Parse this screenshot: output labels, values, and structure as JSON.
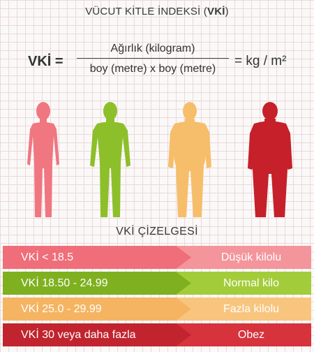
{
  "header": {
    "title_prefix": "VÜCUT KİTLE İNDEKSİ (",
    "title_bold": "VKİ",
    "title_suffix": ")"
  },
  "formula": {
    "lhs": "VKİ =",
    "numerator": "Ağırlık (kilogram)",
    "denominator": "boy (metre) x boy (metre)",
    "rhs": "= kg / m²"
  },
  "figures": [
    {
      "icon": "slim-person-icon",
      "color": "#f07680"
    },
    {
      "icon": "normal-person-icon",
      "color": "#8dbf2a"
    },
    {
      "icon": "overweight-person-icon",
      "color": "#f6be6a"
    },
    {
      "icon": "obese-person-icon",
      "color": "#c6202a"
    }
  ],
  "chart": {
    "title": "VKİ ÇİZELGESİ",
    "rows": [
      {
        "range": "VKİ < 18.5",
        "category": "Düşük kilolu",
        "left_color": "#ef6e79",
        "right_color": "#f4949b"
      },
      {
        "range": "VKİ 18.50 - 24.99",
        "category": "Normal kilo",
        "left_color": "#7fb020",
        "right_color": "#a3cc3a"
      },
      {
        "range": "VKİ 25.0 - 29.99",
        "category": "Fazla kilolu",
        "left_color": "#f5b462",
        "right_color": "#f8c57e"
      },
      {
        "range": "VKİ 30 veya daha fazla",
        "category": "Obez",
        "left_color": "#c1242e",
        "right_color": "#d6333d"
      }
    ]
  }
}
